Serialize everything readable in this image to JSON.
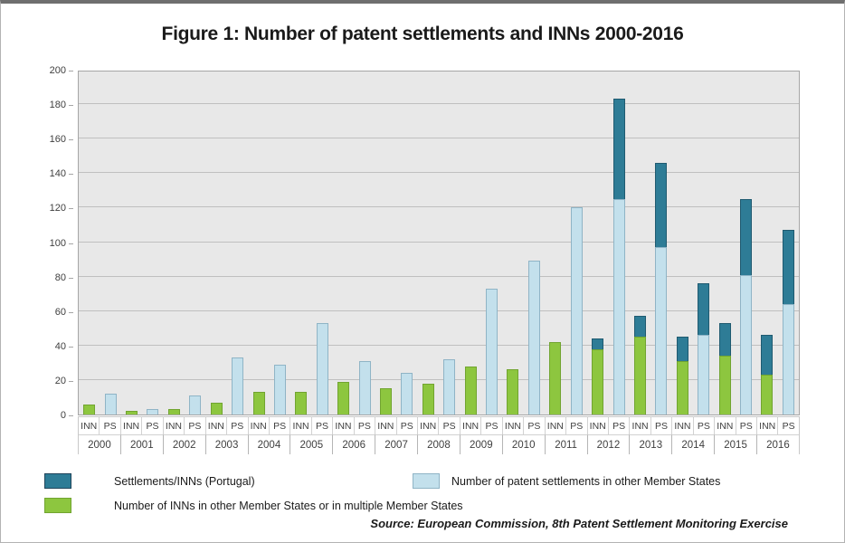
{
  "chart_data": {
    "type": "bar",
    "title": "Figure 1: Number of patent settlements and INNs 2000-2016",
    "source": "Source: European Commission, 8th Patent Settlement Monitoring Exercise",
    "ylim": [
      0,
      200
    ],
    "ytick_interval": 20,
    "grid": true,
    "plot_background": "#e8e8e8",
    "years": [
      "2000",
      "2001",
      "2002",
      "2003",
      "2004",
      "2005",
      "2006",
      "2007",
      "2008",
      "2009",
      "2010",
      "2011",
      "2012",
      "2013",
      "2014",
      "2015",
      "2016"
    ],
    "bar_labels": [
      "INN",
      "PS"
    ],
    "series": [
      {
        "name": "Number of INNs in other Member States or in multiple Member States",
        "bar": "INN",
        "stack_order": "base",
        "color": "#8dc63f",
        "border_color": "#71a430",
        "values": [
          6,
          2,
          3,
          7,
          13,
          13,
          19,
          15,
          18,
          28,
          26,
          42,
          38,
          45,
          31,
          34,
          23
        ]
      },
      {
        "name": "Settlements/INNs (Portugal) - INN portion",
        "bar": "INN",
        "stack_order": "cap",
        "color": "#2e7c96",
        "border_color": "#1f5a70",
        "values": [
          0,
          0,
          0,
          0,
          0,
          0,
          0,
          0,
          0,
          0,
          0,
          0,
          6,
          12,
          14,
          19,
          23
        ]
      },
      {
        "name": "Number of patent settlements in other Member States",
        "bar": "PS",
        "stack_order": "base",
        "color": "#c3e0ec",
        "border_color": "#8fb4c6",
        "values": [
          12,
          3,
          11,
          33,
          29,
          53,
          31,
          24,
          32,
          73,
          89,
          120,
          125,
          97,
          46,
          81,
          64
        ]
      },
      {
        "name": "Settlements/INNs (Portugal) - PS portion",
        "bar": "PS",
        "stack_order": "cap",
        "color": "#2e7c96",
        "border_color": "#1f5a70",
        "values": [
          0,
          0,
          0,
          0,
          0,
          0,
          0,
          0,
          0,
          0,
          0,
          0,
          58,
          49,
          30,
          44,
          43
        ]
      }
    ],
    "legend": [
      {
        "label": "Settlements/INNs  (Portugal)",
        "color": "#2e7c96",
        "border_color": "#1f445a"
      },
      {
        "label": "Number of patent settlements in other Member States",
        "color": "#c3e0ec",
        "border_color": "#8fb4c6"
      },
      {
        "label": "Number of INNs in other Member States or in multiple Member States",
        "color": "#8dc63f",
        "border_color": "#71a430"
      }
    ],
    "legend_position": "bottom"
  }
}
